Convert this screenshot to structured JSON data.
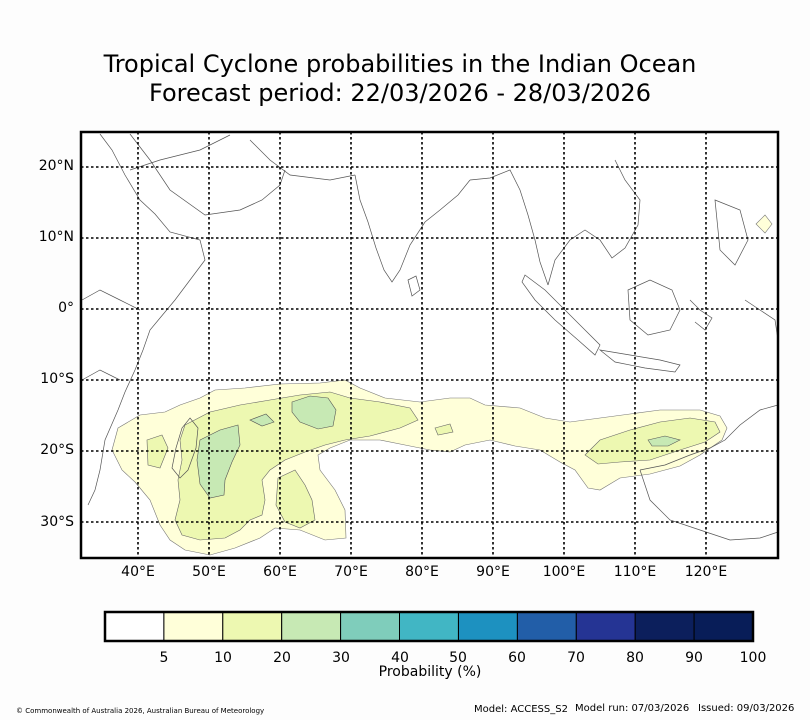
{
  "title": {
    "line1": "Tropical Cyclone probabilities in the Indian Ocean",
    "line2": "Forecast period: 22/03/2026 - 28/03/2026"
  },
  "axes": {
    "lat_labels": [
      "20°N",
      "10°N",
      "0°",
      "10°S",
      "20°S",
      "30°S"
    ],
    "lon_labels": [
      "40°E",
      "50°E",
      "60°E",
      "70°E",
      "80°E",
      "90°E",
      "100°E",
      "110°E",
      "120°E"
    ]
  },
  "colorbar": {
    "label": "Probability (%)",
    "ticks": [
      "5",
      "10",
      "20",
      "30",
      "40",
      "50",
      "60",
      "70",
      "80",
      "90",
      "100"
    ],
    "colors": [
      "#ffffff",
      "#ffffd9",
      "#edf8b1",
      "#c7e9b4",
      "#7fcdbb",
      "#41b6c4",
      "#1d91c0",
      "#225ea8",
      "#253494",
      "#0c1f5c",
      "#081d58"
    ]
  },
  "footer": {
    "copyright": "© Commonwealth of Australia 2026, Australian Bureau of Meteorology",
    "model": "Model: ACCESS_S2",
    "model_run": "Model run: 07/03/2026",
    "issued": "Issued: 09/03/2026"
  }
}
